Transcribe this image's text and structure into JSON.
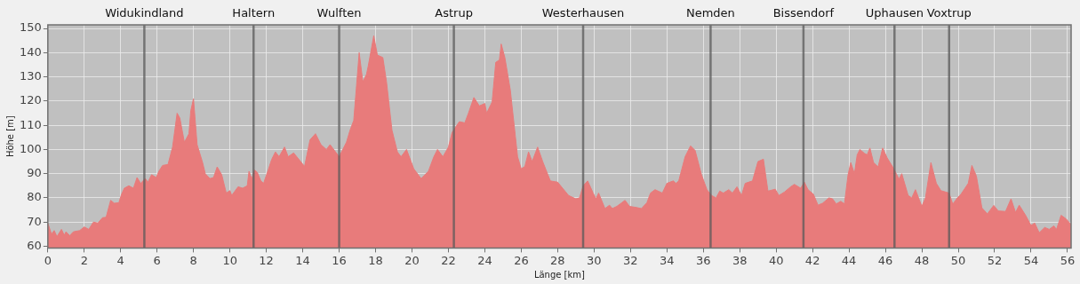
{
  "chart_data": {
    "type": "area",
    "xlabel": "Länge [km]",
    "ylabel": "Höhe [m]",
    "xlim": [
      0,
      56.2
    ],
    "xticks": [
      0,
      2,
      4,
      6,
      8,
      10,
      12,
      14,
      16,
      18,
      20,
      22,
      24,
      26,
      28,
      30,
      32,
      34,
      36,
      38,
      40,
      42,
      44,
      46,
      48,
      50,
      52,
      54,
      56
    ],
    "ylim": [
      59.3,
      151.5
    ],
    "yticks": [
      60,
      70,
      80,
      90,
      100,
      110,
      120,
      130,
      140,
      150
    ],
    "grid": true,
    "marker": "none",
    "x": [
      0,
      0.2,
      0.35,
      0.5,
      0.75,
      0.9,
      1.0,
      1.2,
      1.4,
      1.75,
      2.0,
      2.25,
      2.5,
      2.75,
      3.0,
      3.2,
      3.45,
      3.65,
      3.9,
      4.05,
      4.2,
      4.45,
      4.7,
      4.9,
      5.1,
      5.35,
      5.5,
      5.7,
      5.95,
      6.1,
      6.3,
      6.6,
      6.85,
      7.1,
      7.25,
      7.5,
      7.75,
      7.85,
      8.0,
      8.2,
      8.5,
      8.65,
      8.9,
      9.1,
      9.3,
      9.55,
      9.8,
      10.0,
      10.1,
      10.45,
      10.7,
      10.95,
      11.05,
      11.2,
      11.35,
      11.5,
      11.7,
      11.85,
      12.1,
      12.3,
      12.5,
      12.7,
      13.0,
      13.2,
      13.5,
      14.1,
      14.4,
      14.7,
      15.0,
      15.3,
      15.5,
      16.0,
      16.4,
      16.6,
      16.8,
      17.1,
      17.3,
      17.5,
      17.6,
      17.9,
      18.1,
      18.4,
      18.6,
      18.9,
      19.2,
      19.4,
      19.7,
      20.1,
      20.5,
      20.9,
      21.2,
      21.4,
      21.7,
      22.0,
      22.2,
      22.6,
      22.9,
      23.1,
      23.4,
      23.7,
      24.0,
      24.1,
      24.4,
      24.6,
      24.8,
      24.9,
      25.1,
      25.4,
      25.8,
      26.0,
      26.2,
      26.4,
      26.6,
      26.9,
      27.2,
      27.6,
      28.0,
      28.6,
      29.0,
      29.2,
      29.4,
      29.65,
      29.95,
      30.1,
      30.25,
      30.6,
      30.85,
      31.0,
      31.25,
      31.7,
      31.95,
      32.35,
      32.6,
      32.9,
      33.1,
      33.35,
      33.75,
      34.0,
      34.35,
      34.5,
      34.65,
      35.0,
      35.3,
      35.55,
      35.9,
      36.2,
      36.45,
      36.7,
      36.9,
      37.1,
      37.4,
      37.6,
      37.85,
      38.1,
      38.3,
      38.7,
      39.0,
      39.3,
      39.55,
      39.95,
      40.15,
      40.45,
      40.8,
      41.0,
      41.35,
      41.55,
      41.75,
      42.05,
      42.3,
      42.55,
      42.9,
      43.1,
      43.3,
      43.55,
      43.75,
      43.95,
      44.1,
      44.3,
      44.45,
      44.6,
      44.85,
      45.0,
      45.15,
      45.35,
      45.6,
      45.85,
      46.1,
      46.4,
      46.75,
      46.9,
      47.25,
      47.45,
      47.65,
      48.0,
      48.2,
      48.5,
      48.8,
      49.05,
      49.5,
      49.7,
      49.95,
      50.15,
      50.55,
      50.75,
      51.0,
      51.3,
      51.6,
      51.95,
      52.2,
      52.6,
      52.9,
      53.15,
      53.35,
      53.7,
      54.0,
      54.2,
      54.45,
      54.75,
      55.0,
      55.25,
      55.4,
      55.65,
      55.9,
      56.2
    ],
    "series": [
      {
        "color": "#e87b7b",
        "values": [
          69.6,
          65,
          66.5,
          64,
          67,
          64.6,
          66,
          64.4,
          66,
          66.5,
          68,
          67,
          70,
          69.6,
          71.8,
          72,
          79,
          77.8,
          78,
          81.5,
          84,
          85,
          84,
          88.4,
          86,
          88,
          86.5,
          89.6,
          88.4,
          91,
          93.4,
          93.8,
          101,
          115,
          113,
          103,
          106.5,
          116,
          121,
          102,
          94.6,
          90,
          88,
          88.4,
          92.8,
          89.6,
          82,
          83,
          81,
          84.6,
          84,
          85,
          91,
          87.8,
          91.5,
          90.6,
          87,
          86,
          91.5,
          96,
          99,
          97,
          101,
          97,
          98.6,
          93,
          104,
          106.5,
          102,
          100,
          102,
          97,
          103,
          108,
          112,
          140,
          128,
          131,
          134.6,
          147,
          139,
          138,
          128,
          108,
          99,
          97,
          100,
          92,
          88,
          91,
          97,
          100,
          97,
          101,
          107,
          111.5,
          111,
          115,
          121.5,
          118,
          119,
          115,
          119.6,
          136,
          137,
          143.6,
          138,
          124.6,
          97,
          92,
          93,
          99,
          95,
          101,
          94.6,
          87,
          86.5,
          81,
          79.6,
          80,
          85,
          87,
          82,
          79.6,
          82,
          75.6,
          77,
          75.6,
          76.5,
          79,
          76.5,
          76,
          75.6,
          78,
          82,
          83.4,
          82,
          86,
          87,
          86,
          87,
          97,
          101.5,
          99.6,
          89.6,
          83.4,
          81,
          80,
          82.8,
          82,
          83.4,
          82,
          84.6,
          81,
          86,
          87,
          95,
          96,
          82.8,
          83.6,
          81,
          82.4,
          84.6,
          85.6,
          84,
          86.5,
          83.4,
          81.5,
          77,
          77.8,
          80,
          79.6,
          77.5,
          78.6,
          77.5,
          89.6,
          94.6,
          90,
          97.8,
          100,
          98.4,
          97.8,
          100.6,
          94.6,
          92.8,
          100.6,
          96.5,
          92.8,
          87.8,
          90,
          81,
          80,
          83.4,
          76.5,
          80,
          94.6,
          86,
          83,
          82,
          77.4,
          80,
          81.5,
          86,
          93.4,
          89,
          75.9,
          73.4,
          76.9,
          74.6,
          74.4,
          79.6,
          74,
          77,
          72.8,
          68.6,
          69.6,
          65.6,
          67.8,
          67,
          68.4,
          67,
          72.8,
          71.5,
          69
        ]
      }
    ],
    "ref_lines": [
      {
        "axis": "x",
        "value": 5.3,
        "label": "Widukindland"
      },
      {
        "axis": "x",
        "value": 11.3,
        "label": "Haltern"
      },
      {
        "axis": "x",
        "value": 16.0,
        "label": "Wulften"
      },
      {
        "axis": "x",
        "value": 22.3,
        "label": "Astrup"
      },
      {
        "axis": "x",
        "value": 29.4,
        "label": "Westerhausen"
      },
      {
        "axis": "x",
        "value": 36.4,
        "label": "Nemden"
      },
      {
        "axis": "x",
        "value": 41.5,
        "label": "Bissendorf"
      },
      {
        "axis": "x",
        "value": 46.5,
        "label": "Uphausen"
      },
      {
        "axis": "x",
        "value": 49.5,
        "label": "Voxtrup"
      }
    ]
  }
}
